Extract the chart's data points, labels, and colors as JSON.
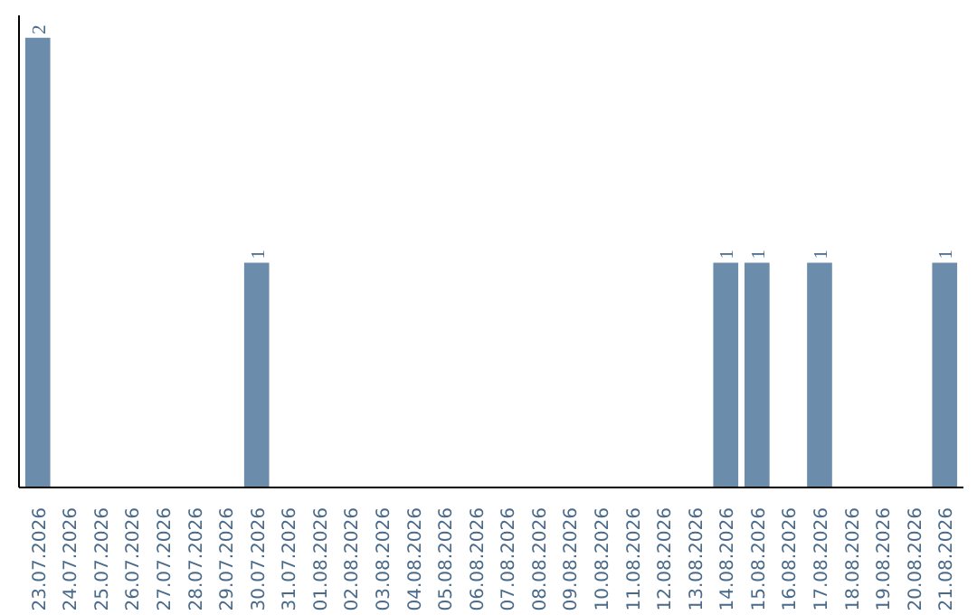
{
  "chart_data": {
    "type": "bar",
    "categories": [
      "23.07.2026",
      "24.07.2026",
      "25.07.2026",
      "26.07.2026",
      "27.07.2026",
      "28.07.2026",
      "29.07.2026",
      "30.07.2026",
      "31.07.2026",
      "01.08.2026",
      "02.08.2026",
      "03.08.2026",
      "04.08.2026",
      "05.08.2026",
      "06.08.2026",
      "07.08.2026",
      "08.08.2026",
      "09.08.2026",
      "10.08.2026",
      "11.08.2026",
      "12.08.2026",
      "13.08.2026",
      "14.08.2026",
      "15.08.2026",
      "16.08.2026",
      "17.08.2026",
      "18.08.2026",
      "19.08.2026",
      "20.08.2026",
      "21.08.2026"
    ],
    "values": [
      2,
      0,
      0,
      0,
      0,
      0,
      0,
      1,
      0,
      0,
      0,
      0,
      0,
      0,
      0,
      0,
      0,
      0,
      0,
      0,
      0,
      0,
      1,
      1,
      0,
      1,
      0,
      0,
      0,
      1
    ],
    "value_labels": [
      "2",
      null,
      null,
      null,
      null,
      null,
      null,
      "1",
      null,
      null,
      null,
      null,
      null,
      null,
      null,
      null,
      null,
      null,
      null,
      null,
      null,
      null,
      "1",
      "1",
      null,
      "1",
      null,
      null,
      null,
      "1"
    ],
    "color": "#6b8cab",
    "grid": false,
    "tick_labels": "x"
  }
}
